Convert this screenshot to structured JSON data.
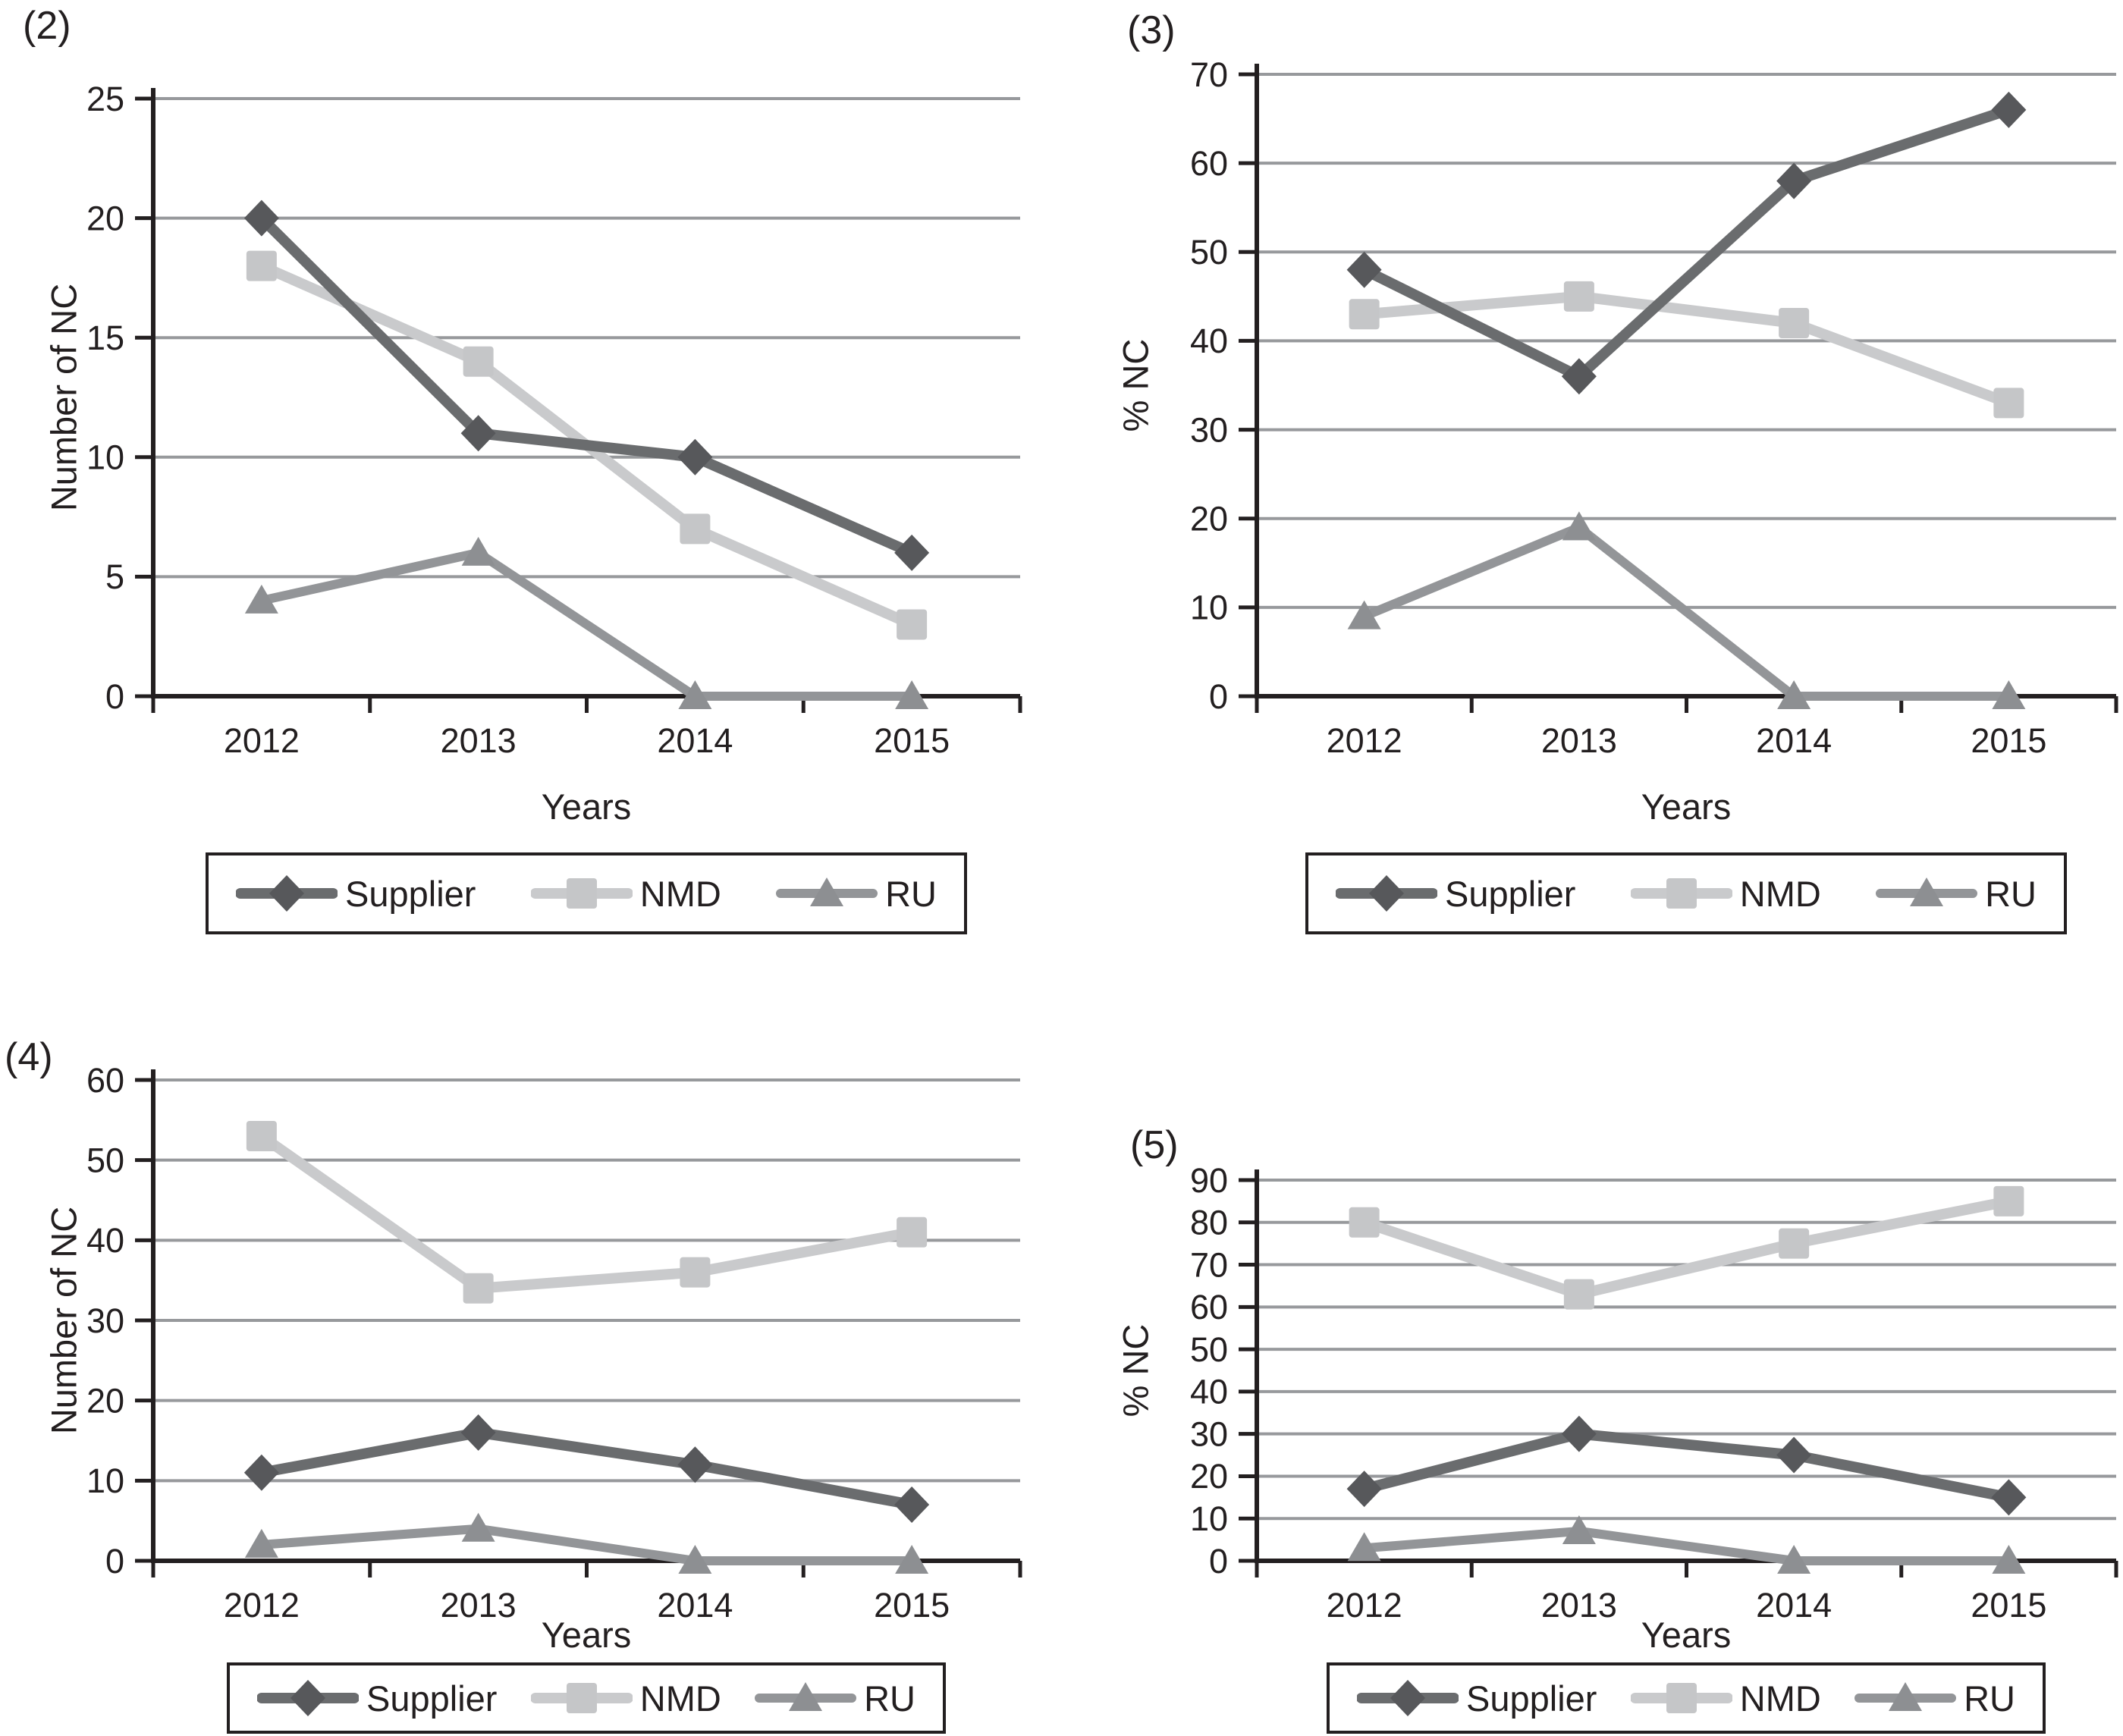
{
  "figure": {
    "background": "#ffffff"
  },
  "colors": {
    "axis": "#231f20",
    "gridline": "#97999c",
    "text": "#231f20",
    "legend_border": "#231f20"
  },
  "chart_data": [
    {
      "panel_label": "(2)",
      "type": "line",
      "xlabel": "Years",
      "ylabel": "Number of NC",
      "ylim": [
        0,
        25
      ],
      "yticks": [
        0,
        5,
        10,
        15,
        20,
        25
      ],
      "categories": [
        "2012",
        "2013",
        "2014",
        "2015"
      ],
      "grid": true,
      "legend_position": "bottom",
      "series": [
        {
          "name": "Supplier",
          "marker": "diamond",
          "values": [
            20,
            11,
            10,
            6
          ],
          "line_color": "#6a6c6e",
          "marker_color": "#57585b"
        },
        {
          "name": "NMD",
          "marker": "square",
          "values": [
            18,
            14,
            7,
            3
          ],
          "line_color": "#c9cacc",
          "marker_color": "#c5c6c8"
        },
        {
          "name": "RU",
          "marker": "triangle",
          "values": [
            4,
            6,
            0,
            0
          ],
          "line_color": "#939598",
          "marker_color": "#8d8f92"
        }
      ]
    },
    {
      "panel_label": "(3)",
      "type": "line",
      "xlabel": "Years",
      "ylabel": "%  NC",
      "ylim": [
        0,
        70
      ],
      "yticks": [
        0,
        10,
        20,
        30,
        40,
        50,
        60,
        70
      ],
      "categories": [
        "2012",
        "2013",
        "2014",
        "2015"
      ],
      "grid": true,
      "legend_position": "bottom",
      "series": [
        {
          "name": "Supplier",
          "marker": "diamond",
          "values": [
            48,
            36,
            58,
            66
          ],
          "line_color": "#6a6c6e",
          "marker_color": "#57585b"
        },
        {
          "name": "NMD",
          "marker": "square",
          "values": [
            43,
            45,
            42,
            33
          ],
          "line_color": "#c9cacc",
          "marker_color": "#c5c6c8"
        },
        {
          "name": "RU",
          "marker": "triangle",
          "values": [
            9,
            19,
            0,
            0
          ],
          "line_color": "#939598",
          "marker_color": "#8d8f92"
        }
      ]
    },
    {
      "panel_label": "(4)",
      "type": "line",
      "xlabel": "Years",
      "ylabel": "Number of NC",
      "ylim": [
        0,
        60
      ],
      "yticks": [
        0,
        10,
        20,
        30,
        40,
        50,
        60
      ],
      "categories": [
        "2012",
        "2013",
        "2014",
        "2015"
      ],
      "grid": true,
      "legend_position": "bottom",
      "series": [
        {
          "name": "Supplier",
          "marker": "diamond",
          "values": [
            11,
            16,
            12,
            7
          ],
          "line_color": "#6a6c6e",
          "marker_color": "#57585b"
        },
        {
          "name": "NMD",
          "marker": "square",
          "values": [
            53,
            34,
            36,
            41
          ],
          "line_color": "#c9cacc",
          "marker_color": "#c5c6c8"
        },
        {
          "name": "RU",
          "marker": "triangle",
          "values": [
            2,
            4,
            0,
            0
          ],
          "line_color": "#939598",
          "marker_color": "#8d8f92"
        }
      ]
    },
    {
      "panel_label": "(5)",
      "type": "line",
      "xlabel": "Years",
      "ylabel": "%  NC",
      "ylim": [
        0,
        90
      ],
      "yticks": [
        0,
        10,
        20,
        30,
        40,
        50,
        60,
        70,
        80,
        90
      ],
      "categories": [
        "2012",
        "2013",
        "2014",
        "2015"
      ],
      "grid": true,
      "legend_position": "bottom",
      "series": [
        {
          "name": "Supplier",
          "marker": "diamond",
          "values": [
            17,
            30,
            25,
            15
          ],
          "line_color": "#6a6c6e",
          "marker_color": "#57585b"
        },
        {
          "name": "NMD",
          "marker": "square",
          "values": [
            80,
            63,
            75,
            85
          ],
          "line_color": "#c9cacc",
          "marker_color": "#c5c6c8"
        },
        {
          "name": "RU",
          "marker": "triangle",
          "values": [
            3,
            7,
            0,
            0
          ],
          "line_color": "#939598",
          "marker_color": "#8d8f92"
        }
      ]
    }
  ]
}
